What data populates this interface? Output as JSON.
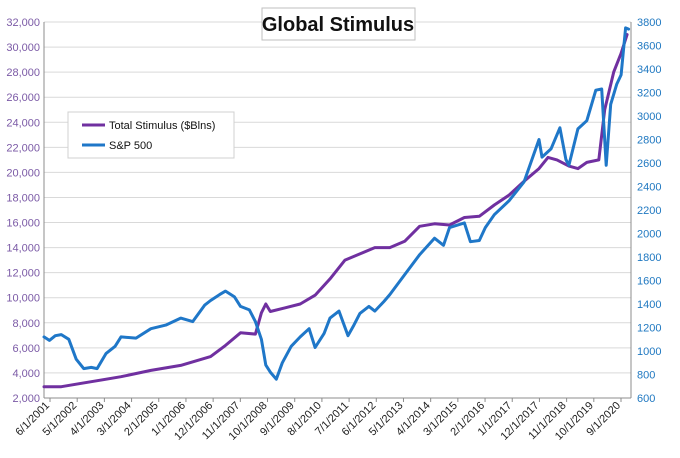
{
  "chart_data": {
    "type": "line",
    "title": "Global Stimulus",
    "xlabel": "",
    "ylabel_left": "",
    "ylabel_right": "",
    "legend_position": "top-left",
    "grid": true,
    "y_left": {
      "min": 2000,
      "max": 32000,
      "step": 2000
    },
    "y_right": {
      "min": 600,
      "max": 3800,
      "step": 200
    },
    "x_range": [
      "2001-06",
      "2020-12"
    ],
    "x_tick_labels": [
      "6/1/2001",
      "5/1/2002",
      "4/1/2003",
      "3/1/2004",
      "2/1/2005",
      "1/1/2006",
      "12/1/2006",
      "11/1/2007",
      "10/1/2008",
      "9/1/2009",
      "8/1/2010",
      "7/1/2011",
      "6/1/2012",
      "5/1/2013",
      "4/1/2014",
      "3/1/2015",
      "2/1/2016",
      "1/1/2017",
      "12/1/2017",
      "11/1/2018",
      "10/1/2019",
      "9/1/2020"
    ],
    "y_left_tick_labels": [
      "2,000",
      "4,000",
      "6,000",
      "8,000",
      "10,000",
      "12,000",
      "14,000",
      "16,000",
      "18,000",
      "20,000",
      "22,000",
      "24,000",
      "26,000",
      "28,000",
      "30,000",
      "32,000"
    ],
    "y_right_tick_labels": [
      "600",
      "800",
      "1000",
      "1200",
      "1400",
      "1600",
      "1800",
      "2000",
      "2200",
      "2400",
      "2600",
      "2800",
      "3000",
      "3200",
      "3400",
      "3600",
      "3800"
    ],
    "series": [
      {
        "name": "Total Stimulus ($Blns)",
        "axis": "left",
        "color": "#7030a0",
        "points": [
          [
            2001.42,
            2900
          ],
          [
            2002.0,
            2900
          ],
          [
            2003.0,
            3300
          ],
          [
            2004.0,
            3700
          ],
          [
            2005.0,
            4200
          ],
          [
            2006.0,
            4600
          ],
          [
            2007.0,
            5300
          ],
          [
            2007.5,
            6200
          ],
          [
            2008.0,
            7200
          ],
          [
            2008.5,
            7100
          ],
          [
            2008.7,
            8800
          ],
          [
            2008.85,
            9500
          ],
          [
            2009.0,
            8900
          ],
          [
            2009.5,
            9200
          ],
          [
            2010.0,
            9500
          ],
          [
            2010.5,
            10200
          ],
          [
            2011.0,
            11500
          ],
          [
            2011.5,
            13000
          ],
          [
            2012.0,
            13500
          ],
          [
            2012.5,
            14000
          ],
          [
            2013.0,
            14000
          ],
          [
            2013.5,
            14500
          ],
          [
            2014.0,
            15700
          ],
          [
            2014.5,
            15900
          ],
          [
            2015.0,
            15800
          ],
          [
            2015.5,
            16400
          ],
          [
            2016.0,
            16500
          ],
          [
            2016.5,
            17400
          ],
          [
            2017.0,
            18200
          ],
          [
            2017.5,
            19300
          ],
          [
            2018.0,
            20300
          ],
          [
            2018.3,
            21200
          ],
          [
            2018.6,
            21000
          ],
          [
            2019.0,
            20500
          ],
          [
            2019.3,
            20300
          ],
          [
            2019.6,
            20800
          ],
          [
            2020.0,
            21000
          ],
          [
            2020.2,
            25000
          ],
          [
            2020.5,
            28000
          ],
          [
            2020.75,
            29500
          ],
          [
            2020.95,
            31000
          ]
        ]
      },
      {
        "name": "S&P 500",
        "axis": "right",
        "color": "#1f77c8",
        "points": [
          [
            2001.42,
            1120
          ],
          [
            2001.6,
            1090
          ],
          [
            2001.8,
            1130
          ],
          [
            2002.0,
            1140
          ],
          [
            2002.25,
            1100
          ],
          [
            2002.5,
            930
          ],
          [
            2002.75,
            850
          ],
          [
            2003.0,
            860
          ],
          [
            2003.2,
            850
          ],
          [
            2003.5,
            980
          ],
          [
            2003.8,
            1040
          ],
          [
            2004.0,
            1120
          ],
          [
            2004.5,
            1110
          ],
          [
            2005.0,
            1190
          ],
          [
            2005.5,
            1220
          ],
          [
            2006.0,
            1280
          ],
          [
            2006.4,
            1250
          ],
          [
            2006.8,
            1390
          ],
          [
            2007.0,
            1430
          ],
          [
            2007.3,
            1480
          ],
          [
            2007.5,
            1510
          ],
          [
            2007.8,
            1460
          ],
          [
            2008.0,
            1380
          ],
          [
            2008.3,
            1350
          ],
          [
            2008.5,
            1250
          ],
          [
            2008.7,
            1100
          ],
          [
            2008.85,
            880
          ],
          [
            2009.0,
            820
          ],
          [
            2009.2,
            760
          ],
          [
            2009.4,
            900
          ],
          [
            2009.7,
            1040
          ],
          [
            2010.0,
            1120
          ],
          [
            2010.3,
            1190
          ],
          [
            2010.5,
            1030
          ],
          [
            2010.8,
            1150
          ],
          [
            2011.0,
            1280
          ],
          [
            2011.3,
            1340
          ],
          [
            2011.6,
            1130
          ],
          [
            2011.8,
            1220
          ],
          [
            2012.0,
            1320
          ],
          [
            2012.3,
            1380
          ],
          [
            2012.5,
            1340
          ],
          [
            2012.8,
            1420
          ],
          [
            2013.0,
            1480
          ],
          [
            2013.5,
            1650
          ],
          [
            2014.0,
            1820
          ],
          [
            2014.5,
            1960
          ],
          [
            2014.8,
            1900
          ],
          [
            2015.0,
            2050
          ],
          [
            2015.5,
            2090
          ],
          [
            2015.7,
            1930
          ],
          [
            2016.0,
            1940
          ],
          [
            2016.2,
            2050
          ],
          [
            2016.5,
            2160
          ],
          [
            2017.0,
            2280
          ],
          [
            2017.5,
            2440
          ],
          [
            2018.0,
            2800
          ],
          [
            2018.1,
            2650
          ],
          [
            2018.4,
            2720
          ],
          [
            2018.7,
            2900
          ],
          [
            2018.9,
            2630
          ],
          [
            2019.0,
            2580
          ],
          [
            2019.3,
            2890
          ],
          [
            2019.6,
            2960
          ],
          [
            2019.9,
            3220
          ],
          [
            2020.1,
            3230
          ],
          [
            2020.25,
            2580
          ],
          [
            2020.4,
            3100
          ],
          [
            2020.6,
            3270
          ],
          [
            2020.75,
            3350
          ],
          [
            2020.9,
            3750
          ],
          [
            2021.0,
            3740
          ]
        ]
      }
    ]
  }
}
